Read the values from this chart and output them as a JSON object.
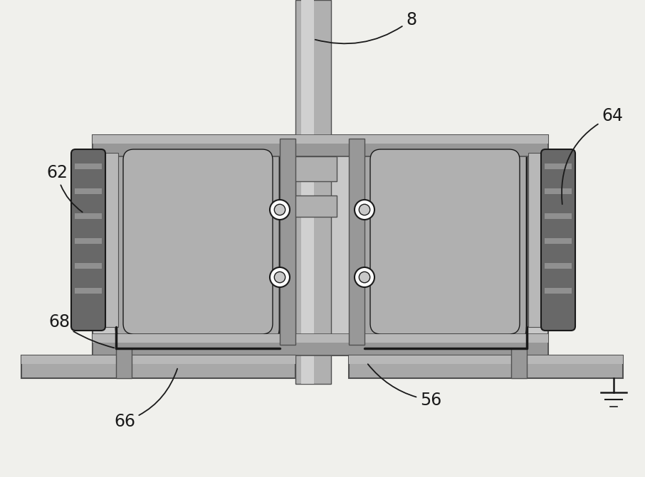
{
  "bg_color": "#f0f0ec",
  "gray_light": "#c8c8c8",
  "gray_mid": "#a8a8a8",
  "gray_dark": "#787878",
  "gray_darker": "#505050",
  "gray_inner": "#b0b0b0",
  "black": "#1a1a1a",
  "white": "#ffffff",
  "shaft_color": "#b0b0b0",
  "shaft_highlight": "#d0d0d0",
  "frame_color": "#989898",
  "panel_dark": "#686868",
  "panel_light": "#b8b8b8"
}
